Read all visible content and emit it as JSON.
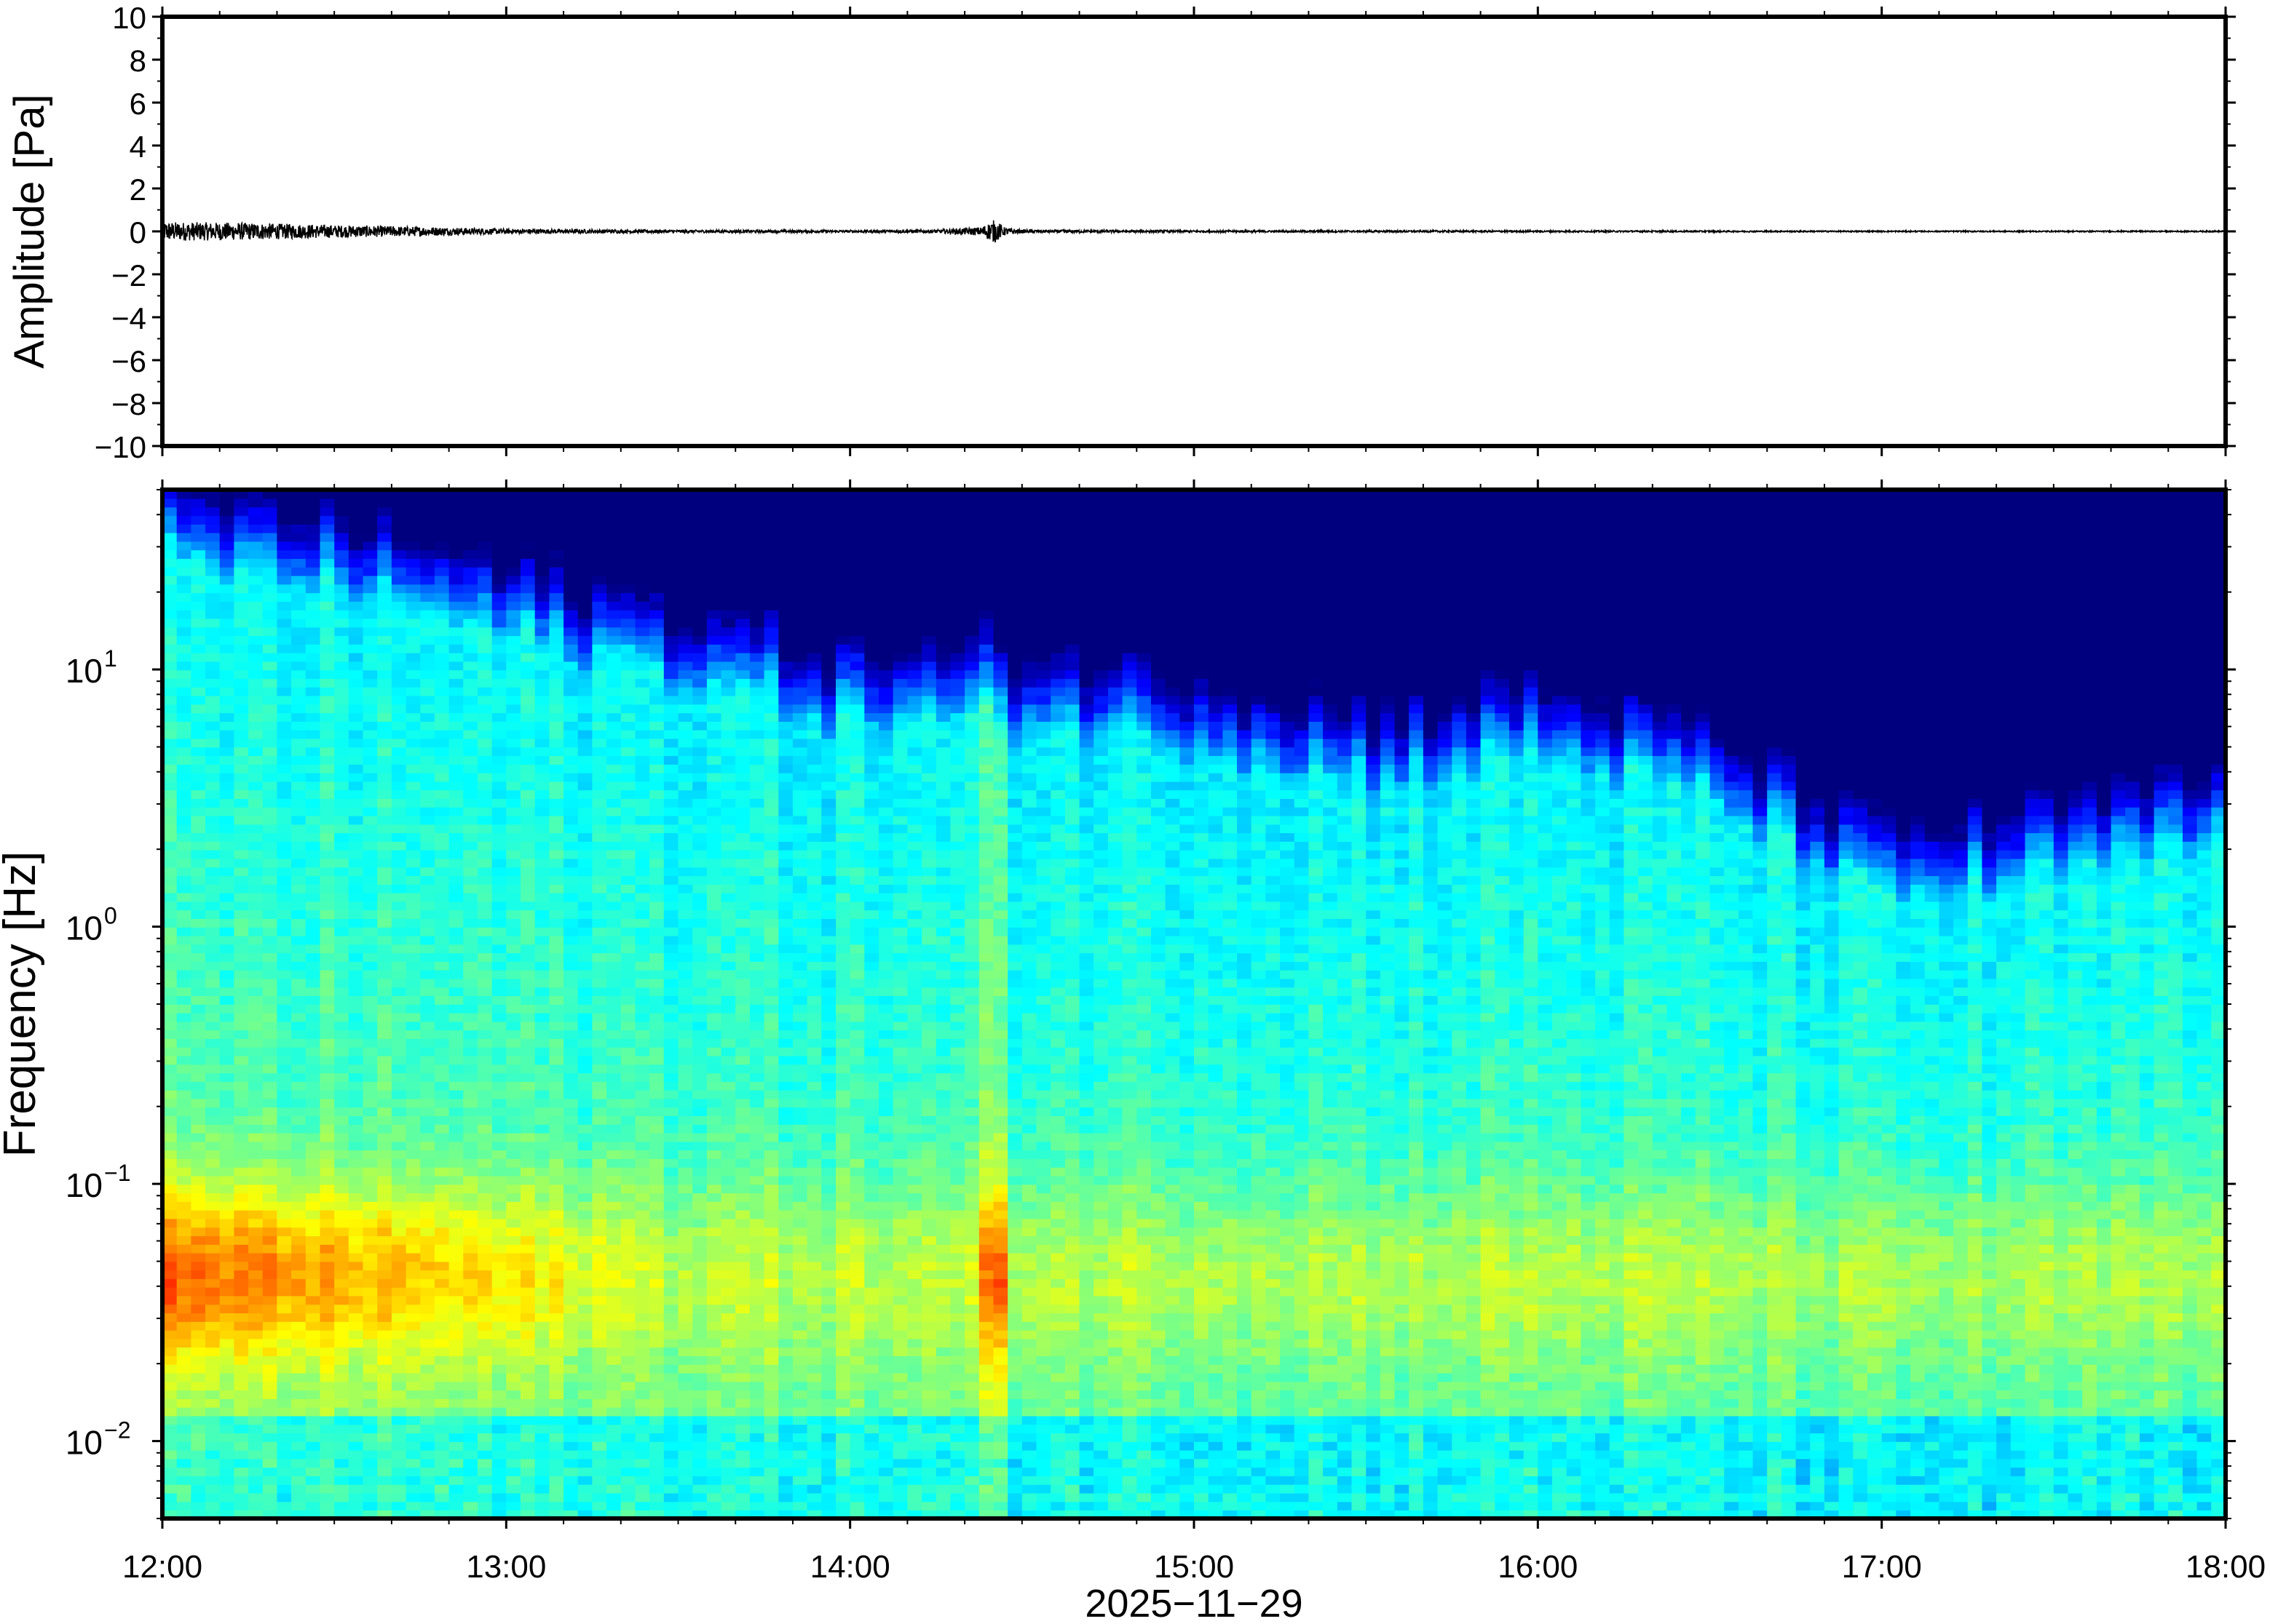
{
  "chart_data": [
    {
      "type": "line",
      "panel": "waveform",
      "ylabel": "Amplitude [Pa]",
      "ylim": [
        -10,
        10
      ],
      "yticks": [
        "10",
        "8",
        "6",
        "4",
        "2",
        "0",
        "−2",
        "−4",
        "−6",
        "−8",
        "−10"
      ],
      "ytick_values": [
        10,
        8,
        6,
        4,
        2,
        0,
        -2,
        -4,
        -6,
        -8,
        -10
      ],
      "x_range": [
        "12:00",
        "18:00"
      ],
      "series": [
        {
          "envelope": {
            "times_hours": [
              12.0,
              12.25,
              12.5,
              12.75,
              13.0,
              13.5,
              14.0,
              14.25,
              14.38,
              14.42,
              14.45,
              14.5,
              15.0,
              16.0,
              17.0,
              18.0
            ],
            "amplitude_pa": [
              0.45,
              0.4,
              0.3,
              0.22,
              0.12,
              0.07,
              0.06,
              0.08,
              0.2,
              0.55,
              0.18,
              0.08,
              0.05,
              0.04,
              0.03,
              0.03
            ]
          }
        }
      ],
      "line_color": "#000000",
      "grid": false
    },
    {
      "type": "heatmap",
      "panel": "spectrogram",
      "ylabel": "Frequency [Hz]",
      "yscale": "log",
      "ylim": [
        0.005,
        50
      ],
      "yticks": [
        {
          "base": "10",
          "exp": "1",
          "value": 10
        },
        {
          "base": "10",
          "exp": "0",
          "value": 1
        },
        {
          "base": "10",
          "exp": "−1",
          "value": 0.1
        },
        {
          "base": "10",
          "exp": "−2",
          "value": 0.01
        }
      ],
      "xticks": [
        "12:00",
        "13:00",
        "14:00",
        "15:00",
        "16:00",
        "17:00",
        "18:00"
      ],
      "xlabel": "2025−11−29",
      "colormap": "jet",
      "colormap_stops": [
        "#00007f",
        "#0000ff",
        "#0080ff",
        "#00ffff",
        "#80ff80",
        "#ffff00",
        "#ff8000",
        "#ff0000"
      ],
      "features": {
        "high_freq_cutoff_hz": {
          "times_hours": [
            12.0,
            12.5,
            13.0,
            13.5,
            14.0,
            14.5,
            15.0,
            15.5,
            16.0,
            16.5,
            17.0,
            17.5,
            18.0
          ],
          "cutoff": [
            25,
            20,
            13,
            9,
            6,
            6,
            5,
            3.5,
            4.5,
            3,
            1.2,
            1.5,
            2
          ]
        },
        "strong_band_hz": [
          0.02,
          0.1
        ],
        "event_time_hours": 14.42
      },
      "grid": false
    }
  ]
}
